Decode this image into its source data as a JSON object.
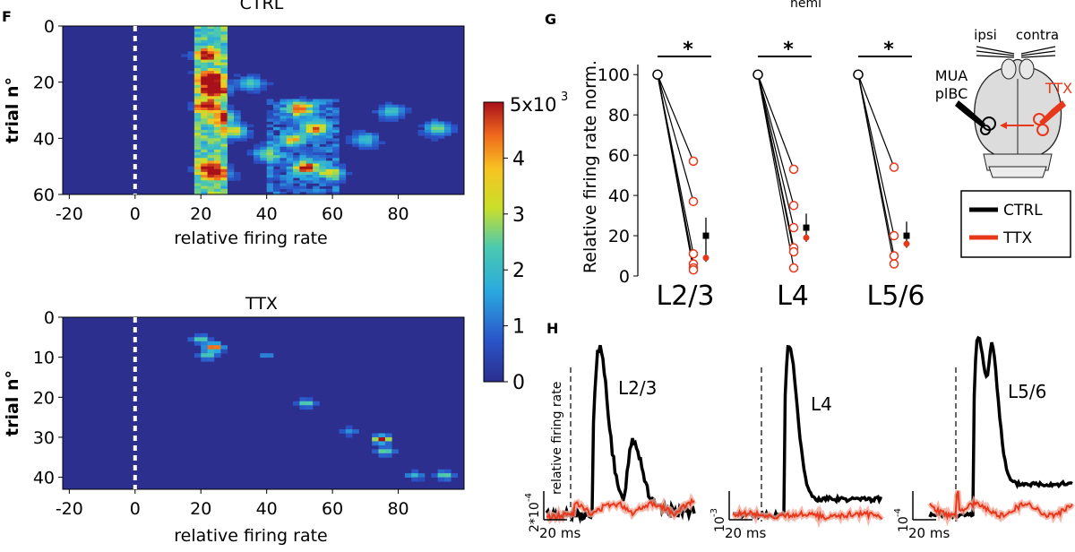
{
  "panels": {
    "F": "F",
    "G": "G",
    "H": "H",
    "top_cut": "hemi"
  },
  "chart_data": [
    {
      "type": "heatmap",
      "id": "ctrl",
      "title": "CTRL",
      "xlabel": "relative firing rate",
      "ylabel": "trial n°",
      "xlim": [
        -22,
        100
      ],
      "ylim": [
        0,
        60
      ],
      "xticks": [
        "-20",
        "0",
        "20",
        "40",
        "60",
        "80"
      ],
      "xtick_values": [
        -20,
        0,
        20,
        40,
        60,
        80
      ],
      "yticks": [
        "0",
        "20",
        "40",
        "60"
      ],
      "ytick_values": [
        0,
        20,
        40,
        60
      ],
      "stimulus_x": 0,
      "hotspots": [
        {
          "x": 22,
          "y": 10,
          "v": 3.5
        },
        {
          "x": 23,
          "y": 18,
          "v": 4.2
        },
        {
          "x": 24,
          "y": 22,
          "v": 4.8
        },
        {
          "x": 22,
          "y": 28,
          "v": 3.6
        },
        {
          "x": 27,
          "y": 32,
          "v": 3.3
        },
        {
          "x": 30,
          "y": 37,
          "v": 3.4
        },
        {
          "x": 22,
          "y": 50,
          "v": 3.1
        },
        {
          "x": 25,
          "y": 52,
          "v": 3.2
        },
        {
          "x": 50,
          "y": 29,
          "v": 4.0
        },
        {
          "x": 52,
          "y": 50,
          "v": 4.5
        },
        {
          "x": 55,
          "y": 36,
          "v": 3.5
        },
        {
          "x": 48,
          "y": 40,
          "v": 2.8
        },
        {
          "x": 40,
          "y": 45,
          "v": 2.4
        },
        {
          "x": 60,
          "y": 52,
          "v": 2.6
        },
        {
          "x": 35,
          "y": 20,
          "v": 2.2
        },
        {
          "x": 92,
          "y": 36,
          "v": 2.6
        },
        {
          "x": 78,
          "y": 30,
          "v": 2.0
        },
        {
          "x": 70,
          "y": 40,
          "v": 2.0
        }
      ]
    },
    {
      "type": "heatmap",
      "id": "ttx",
      "title": "TTX",
      "xlabel": "relative firing rate",
      "ylabel": "trial n°",
      "xlim": [
        -22,
        100
      ],
      "ylim": [
        0,
        43
      ],
      "xticks": [
        "-20",
        "0",
        "20",
        "40",
        "60",
        "80"
      ],
      "xtick_values": [
        -20,
        0,
        20,
        40,
        60,
        80
      ],
      "yticks": [
        "0",
        "10",
        "20",
        "30",
        "40"
      ],
      "ytick_values": [
        0,
        10,
        20,
        30,
        40
      ],
      "stimulus_x": 0,
      "hotspots": [
        {
          "x": 24,
          "y": 7,
          "v": 4.8
        },
        {
          "x": 20,
          "y": 5,
          "v": 2.5
        },
        {
          "x": 22,
          "y": 9,
          "v": 2.5
        },
        {
          "x": 52,
          "y": 21,
          "v": 2.5
        },
        {
          "x": 75,
          "y": 30,
          "v": 5.0
        },
        {
          "x": 76,
          "y": 33,
          "v": 2.6
        },
        {
          "x": 94,
          "y": 39,
          "v": 2.6
        },
        {
          "x": 85,
          "y": 39,
          "v": 1.8
        },
        {
          "x": 65,
          "y": 28,
          "v": 1.2
        },
        {
          "x": 40,
          "y": 9,
          "v": 1.2
        }
      ]
    },
    {
      "type": "colorbar",
      "id": "cbar",
      "label_top": "5x10",
      "exponent": "3",
      "ticks": [
        "0",
        "1",
        "2",
        "3",
        "4"
      ],
      "tick_values": [
        0,
        1,
        2,
        3,
        4
      ],
      "range": [
        0,
        5
      ]
    },
    {
      "type": "line",
      "id": "firing_norm",
      "ylabel": "Relative firing rate norm.",
      "ylim": [
        0,
        105
      ],
      "yticks": [
        "0",
        "20",
        "40",
        "60",
        "80",
        "100"
      ],
      "ytick_values": [
        0,
        20,
        40,
        60,
        80,
        100
      ],
      "significance": "*",
      "groups": [
        {
          "label": "L2/3",
          "end": [
            57,
            37,
            11,
            6,
            4,
            3
          ],
          "mean_ctrl": 20,
          "mean_ttx": 9,
          "err": 9
        },
        {
          "label": "L4",
          "end": [
            53,
            35,
            24,
            14,
            12,
            4
          ],
          "mean_ctrl": 24,
          "mean_ttx": 19,
          "err": 7
        },
        {
          "label": "L5/6",
          "end": [
            54,
            20,
            10,
            6
          ],
          "mean_ctrl": 20,
          "mean_ttx": 16,
          "err": 7
        }
      ]
    },
    {
      "type": "line",
      "id": "psth",
      "ylabel_inner": "relative firing rate",
      "series": [
        {
          "name": "CTRL",
          "color": "#000000"
        },
        {
          "name": "TTX",
          "color": "#e8381c"
        }
      ],
      "panels": [
        {
          "label": "L2/3",
          "scale_y": "2*10",
          "scale_exp": "-4",
          "scale_x": "20 ms"
        },
        {
          "label": "L4",
          "scale_y": "10",
          "scale_exp": "-3",
          "scale_x": "20 ms"
        },
        {
          "label": "L5/6",
          "scale_y": "10",
          "scale_exp": "-4",
          "scale_x": "20 ms"
        }
      ]
    }
  ],
  "schematic": {
    "ipsi": "ipsi",
    "contra": "contra",
    "mua": "MUA",
    "plbc": "plBC",
    "ttx": "TTX"
  },
  "legend": [
    {
      "name": "CTRL",
      "color": "#000000"
    },
    {
      "name": "TTX",
      "color": "#e8381c"
    }
  ]
}
